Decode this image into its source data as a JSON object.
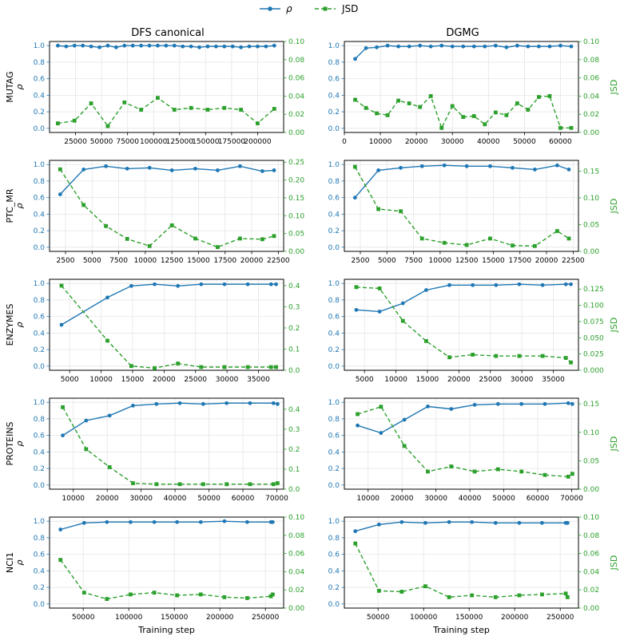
{
  "colors": {
    "rho": "#1f77b4",
    "jsd": "#2ca02c",
    "grid": "#e5e5e5",
    "axis": "#000000"
  },
  "legend": {
    "rho_label": "ρ",
    "jsd_label": "JSD",
    "placement": "top-center"
  },
  "col_titles": [
    "DFS canonical",
    "DGMG"
  ],
  "row_labels": [
    "MUTAG",
    "PTC_MR",
    "ENZYMES",
    "PROTEINS",
    "NCI1"
  ],
  "left_axis_label": "ρ",
  "right_axis_label": "JSD",
  "x_axis_label": "Training step",
  "chart_data": [
    {
      "type": "line",
      "dataset": "MUTAG",
      "method": "DFS canonical",
      "xlim": [
        0,
        225000
      ],
      "xticks": [
        25000,
        50000,
        75000,
        100000,
        125000,
        150000,
        175000,
        200000
      ],
      "ylim_left": [
        -0.05,
        1.05
      ],
      "yticks_left": [
        0.0,
        0.2,
        0.4,
        0.6,
        0.8,
        1.0
      ],
      "ylim_right": [
        0,
        0.1
      ],
      "yticks_right": [
        0.0,
        0.02,
        0.04,
        0.06,
        0.08,
        0.1
      ],
      "rho": {
        "x": [
          8000,
          16000,
          24000,
          32000,
          40000,
          48000,
          56000,
          64000,
          72000,
          80000,
          88000,
          96000,
          104000,
          112000,
          120000,
          128000,
          136000,
          144000,
          152000,
          160000,
          168000,
          176000,
          184000,
          192000,
          200000,
          208000,
          216000
        ],
        "y": [
          1.0,
          0.99,
          1.0,
          1.0,
          0.99,
          0.98,
          1.0,
          0.98,
          1.0,
          1.0,
          1.0,
          1.0,
          1.0,
          1.0,
          1.0,
          0.99,
          0.99,
          0.98,
          0.99,
          0.99,
          0.99,
          0.99,
          0.98,
          0.99,
          0.99,
          0.99,
          1.0
        ]
      },
      "jsd": {
        "x": [
          8000,
          24000,
          40000,
          56000,
          72000,
          88000,
          104000,
          120000,
          136000,
          152000,
          168000,
          184000,
          200000,
          216000
        ],
        "y": [
          0.01,
          0.013,
          0.032,
          0.007,
          0.033,
          0.025,
          0.038,
          0.025,
          0.027,
          0.025,
          0.027,
          0.025,
          0.01,
          0.026
        ]
      },
      "grid": true
    },
    {
      "type": "line",
      "dataset": "MUTAG",
      "method": "DGMG",
      "xlim": [
        0,
        65000
      ],
      "xticks": [
        0,
        10000,
        20000,
        30000,
        40000,
        50000,
        60000
      ],
      "ylim_left": [
        -0.05,
        1.05
      ],
      "yticks_left": [
        0.0,
        0.2,
        0.4,
        0.6,
        0.8,
        1.0
      ],
      "ylim_right": [
        0,
        0.1
      ],
      "yticks_right": [
        0.0,
        0.02,
        0.04,
        0.06,
        0.08,
        0.1
      ],
      "rho": {
        "x": [
          3000,
          6000,
          9000,
          12000,
          15000,
          18000,
          21000,
          24000,
          27000,
          30000,
          33000,
          36000,
          39000,
          42000,
          45000,
          48000,
          51000,
          54000,
          57000,
          60000,
          63000
        ],
        "y": [
          0.84,
          0.97,
          0.98,
          1.0,
          0.99,
          0.99,
          1.0,
          0.99,
          1.0,
          0.99,
          0.99,
          0.99,
          0.99,
          1.0,
          0.98,
          1.0,
          0.99,
          0.99,
          0.99,
          1.0,
          0.99
        ]
      },
      "jsd": {
        "x": [
          3000,
          6000,
          9000,
          12000,
          15000,
          18000,
          21000,
          24000,
          27000,
          30000,
          33000,
          36000,
          39000,
          42000,
          45000,
          48000,
          51000,
          54000,
          57000,
          60000,
          63000
        ],
        "y": [
          0.036,
          0.027,
          0.021,
          0.019,
          0.035,
          0.032,
          0.028,
          0.04,
          0.005,
          0.029,
          0.017,
          0.018,
          0.009,
          0.022,
          0.019,
          0.032,
          0.025,
          0.039,
          0.04,
          0.005,
          0.005
        ]
      },
      "grid": true
    },
    {
      "type": "line",
      "dataset": "PTC_MR",
      "method": "DFS canonical",
      "xlim": [
        1000,
        23000
      ],
      "xticks": [
        2500,
        5000,
        7500,
        10000,
        12500,
        15000,
        17500,
        20000,
        22500
      ],
      "ylim_left": [
        -0.05,
        1.05
      ],
      "yticks_left": [
        0.0,
        0.2,
        0.4,
        0.6,
        0.8,
        1.0
      ],
      "ylim_right": [
        0,
        0.255
      ],
      "yticks_right": [
        0.0,
        0.05,
        0.1,
        0.15,
        0.2,
        0.25
      ],
      "rho": {
        "x": [
          2000,
          4200,
          6300,
          8300,
          10400,
          12500,
          14700,
          16800,
          18900,
          21000,
          22100
        ],
        "y": [
          0.64,
          0.94,
          0.98,
          0.95,
          0.96,
          0.93,
          0.95,
          0.93,
          0.98,
          0.92,
          0.93
        ]
      },
      "jsd": {
        "x": [
          2000,
          4200,
          6300,
          8300,
          10400,
          12500,
          14700,
          16800,
          18900,
          21000,
          22100
        ],
        "y": [
          0.23,
          0.13,
          0.071,
          0.035,
          0.015,
          0.073,
          0.036,
          0.012,
          0.036,
          0.034,
          0.043
        ]
      },
      "grid": true
    },
    {
      "type": "line",
      "dataset": "PTC_MR",
      "method": "DGMG",
      "xlim": [
        1000,
        23000
      ],
      "xticks": [
        2500,
        5000,
        7500,
        10000,
        12500,
        15000,
        17500,
        20000,
        22500
      ],
      "ylim_left": [
        -0.05,
        1.05
      ],
      "yticks_left": [
        0.0,
        0.2,
        0.4,
        0.6,
        0.8,
        1.0
      ],
      "ylim_right": [
        0,
        0.17
      ],
      "yticks_right": [
        0.0,
        0.05,
        0.1,
        0.15
      ],
      "rho": {
        "x": [
          2000,
          4200,
          6300,
          8300,
          10400,
          12500,
          14700,
          16800,
          18900,
          21000,
          22100
        ],
        "y": [
          0.6,
          0.93,
          0.96,
          0.98,
          0.99,
          0.98,
          0.98,
          0.96,
          0.94,
          0.99,
          0.94
        ]
      },
      "jsd": {
        "x": [
          2000,
          4200,
          6300,
          8300,
          10400,
          12500,
          14700,
          16800,
          18900,
          21000,
          22100
        ],
        "y": [
          0.158,
          0.079,
          0.075,
          0.024,
          0.016,
          0.012,
          0.024,
          0.011,
          0.01,
          0.038,
          0.024
        ]
      },
      "grid": true
    },
    {
      "type": "line",
      "dataset": "ENZYMES",
      "method": "DFS canonical",
      "xlim": [
        1800,
        39000
      ],
      "xticks": [
        5000,
        10000,
        15000,
        20000,
        25000,
        30000,
        35000
      ],
      "ylim_left": [
        -0.05,
        1.05
      ],
      "yticks_left": [
        0.0,
        0.2,
        0.4,
        0.6,
        0.8,
        1.0
      ],
      "ylim_right": [
        0,
        0.43
      ],
      "yticks_right": [
        0.0,
        0.1,
        0.2,
        0.3,
        0.4
      ],
      "rho": {
        "x": [
          3700,
          11000,
          14800,
          18500,
          22200,
          25900,
          29600,
          33300,
          37000,
          37800
        ],
        "y": [
          0.5,
          0.83,
          0.97,
          0.99,
          0.97,
          0.99,
          0.99,
          0.99,
          0.99,
          0.99
        ]
      },
      "jsd": {
        "x": [
          3700,
          11000,
          14800,
          18500,
          22200,
          25900,
          29600,
          33300,
          37000,
          37800
        ],
        "y": [
          0.4,
          0.14,
          0.02,
          0.01,
          0.032,
          0.015,
          0.015,
          0.015,
          0.015,
          0.015
        ]
      },
      "grid": true
    },
    {
      "type": "line",
      "dataset": "ENZYMES",
      "method": "DGMG",
      "xlim": [
        1800,
        39000
      ],
      "xticks": [
        5000,
        10000,
        15000,
        20000,
        25000,
        30000,
        35000
      ],
      "ylim_left": [
        -0.05,
        1.05
      ],
      "yticks_left": [
        0.0,
        0.2,
        0.4,
        0.6,
        0.8,
        1.0
      ],
      "ylim_right": [
        0,
        0.14
      ],
      "yticks_right": [
        0.0,
        0.025,
        0.05,
        0.075,
        0.1,
        0.125
      ],
      "rho": {
        "x": [
          3700,
          7400,
          11100,
          14800,
          18500,
          22200,
          25900,
          29600,
          33300,
          37000,
          37800
        ],
        "y": [
          0.68,
          0.66,
          0.76,
          0.92,
          0.98,
          0.98,
          0.98,
          0.99,
          0.98,
          0.99,
          0.99
        ]
      },
      "jsd": {
        "x": [
          3700,
          7400,
          11100,
          14800,
          18500,
          22200,
          25900,
          29600,
          33300,
          37000,
          37800
        ],
        "y": [
          0.128,
          0.126,
          0.076,
          0.045,
          0.02,
          0.024,
          0.022,
          0.022,
          0.022,
          0.019,
          0.012
        ]
      },
      "grid": true
    },
    {
      "type": "line",
      "dataset": "PROTEINS",
      "method": "DFS canonical",
      "xlim": [
        3000,
        72000
      ],
      "xticks": [
        10000,
        20000,
        30000,
        40000,
        50000,
        60000,
        70000
      ],
      "ylim_left": [
        -0.05,
        1.05
      ],
      "yticks_left": [
        0.0,
        0.2,
        0.4,
        0.6,
        0.8,
        1.0
      ],
      "ylim_right": [
        0,
        0.455
      ],
      "yticks_right": [
        0.0,
        0.1,
        0.2,
        0.3,
        0.4
      ],
      "rho": {
        "x": [
          6900,
          13800,
          20700,
          27600,
          34500,
          41400,
          48300,
          55200,
          62100,
          69000,
          70200
        ],
        "y": [
          0.6,
          0.78,
          0.84,
          0.96,
          0.98,
          0.99,
          0.98,
          0.99,
          0.99,
          0.99,
          0.98
        ]
      },
      "jsd": {
        "x": [
          6900,
          13800,
          20700,
          27600,
          34500,
          41400,
          48300,
          55200,
          62100,
          69000,
          70200
        ],
        "y": [
          0.41,
          0.2,
          0.11,
          0.03,
          0.025,
          0.025,
          0.025,
          0.025,
          0.025,
          0.025,
          0.03
        ]
      },
      "grid": true
    },
    {
      "type": "line",
      "dataset": "PROTEINS",
      "method": "DGMG",
      "xlim": [
        3000,
        72000
      ],
      "xticks": [
        10000,
        20000,
        30000,
        40000,
        50000,
        60000,
        70000
      ],
      "ylim_left": [
        -0.05,
        1.05
      ],
      "yticks_left": [
        0.0,
        0.2,
        0.4,
        0.6,
        0.8,
        1.0
      ],
      "ylim_right": [
        0,
        0.16
      ],
      "yticks_right": [
        0.0,
        0.05,
        0.1,
        0.15
      ],
      "rho": {
        "x": [
          6900,
          13800,
          20700,
          27600,
          34500,
          41400,
          48300,
          55200,
          62100,
          69000,
          70200
        ],
        "y": [
          0.72,
          0.63,
          0.79,
          0.95,
          0.92,
          0.97,
          0.98,
          0.98,
          0.98,
          0.99,
          0.98
        ]
      },
      "jsd": {
        "x": [
          6900,
          13800,
          20700,
          27600,
          34500,
          41400,
          48300,
          55200,
          62100,
          69000,
          70200
        ],
        "y": [
          0.132,
          0.145,
          0.076,
          0.031,
          0.04,
          0.031,
          0.035,
          0.031,
          0.025,
          0.022,
          0.027
        ]
      },
      "grid": true
    },
    {
      "type": "line",
      "dataset": "NCI1",
      "method": "DFS canonical",
      "xlim": [
        13000,
        270000
      ],
      "xticks": [
        50000,
        100000,
        150000,
        200000,
        250000
      ],
      "ylim_left": [
        -0.05,
        1.05
      ],
      "yticks_left": [
        0.0,
        0.2,
        0.4,
        0.6,
        0.8,
        1.0
      ],
      "ylim_right": [
        0,
        0.1
      ],
      "yticks_right": [
        0.0,
        0.02,
        0.04,
        0.06,
        0.08,
        0.1
      ],
      "rho": {
        "x": [
          25000,
          51000,
          76000,
          102000,
          128000,
          153000,
          179000,
          205000,
          230000,
          256000,
          258000
        ],
        "y": [
          0.9,
          0.98,
          0.99,
          0.99,
          0.99,
          0.99,
          0.99,
          1.0,
          0.99,
          0.99,
          0.99
        ]
      },
      "jsd": {
        "x": [
          25000,
          51000,
          76000,
          102000,
          128000,
          153000,
          179000,
          205000,
          230000,
          256000,
          258000
        ],
        "y": [
          0.053,
          0.017,
          0.01,
          0.015,
          0.017,
          0.014,
          0.015,
          0.012,
          0.011,
          0.013,
          0.015
        ]
      },
      "grid": true
    },
    {
      "type": "line",
      "dataset": "NCI1",
      "method": "DGMG",
      "xlim": [
        13000,
        270000
      ],
      "xticks": [
        50000,
        100000,
        150000,
        200000,
        250000
      ],
      "ylim_left": [
        -0.05,
        1.05
      ],
      "yticks_left": [
        0.0,
        0.2,
        0.4,
        0.6,
        0.8,
        1.0
      ],
      "ylim_right": [
        0,
        0.1
      ],
      "yticks_right": [
        0.0,
        0.02,
        0.04,
        0.06,
        0.08,
        0.1
      ],
      "rho": {
        "x": [
          25000,
          51000,
          76000,
          102000,
          128000,
          153000,
          179000,
          205000,
          230000,
          256000,
          258000
        ],
        "y": [
          0.88,
          0.96,
          0.99,
          0.98,
          0.99,
          0.99,
          0.98,
          0.98,
          0.98,
          0.98,
          0.98
        ]
      },
      "jsd": {
        "x": [
          25000,
          51000,
          76000,
          102000,
          128000,
          153000,
          179000,
          205000,
          230000,
          256000,
          258000
        ],
        "y": [
          0.071,
          0.019,
          0.018,
          0.024,
          0.012,
          0.014,
          0.012,
          0.014,
          0.015,
          0.016,
          0.012
        ]
      },
      "grid": true
    }
  ]
}
